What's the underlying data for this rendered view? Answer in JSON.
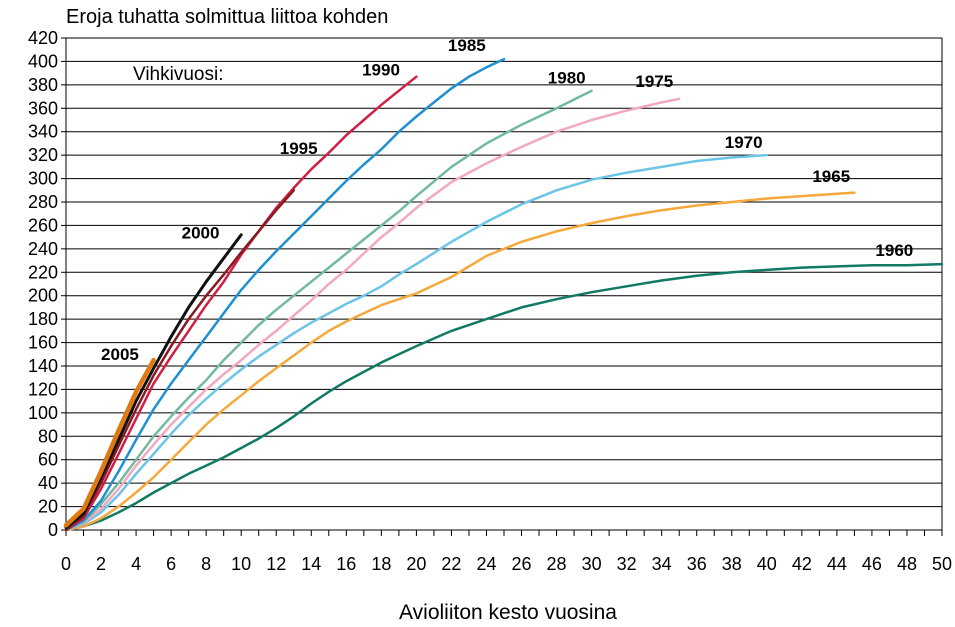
{
  "chart_data": {
    "type": "line",
    "title": "Eroja tuhatta solmittua liittoa kohden",
    "xlabel": "Avioliiton kesto vuosina",
    "ylabel": "",
    "legend_title": "Vihkivuosi:",
    "xlim": [
      0,
      50
    ],
    "ylim": [
      0,
      420
    ],
    "x_ticks": [
      "0",
      "2",
      "4",
      "6",
      "8",
      "10",
      "12",
      "14",
      "16",
      "18",
      "20",
      "22",
      "24",
      "26",
      "28",
      "30",
      "32",
      "34",
      "36",
      "38",
      "40",
      "42",
      "44",
      "46",
      "48",
      "50"
    ],
    "y_ticks": [
      "0",
      "20",
      "40",
      "60",
      "80",
      "100",
      "120",
      "140",
      "160",
      "180",
      "200",
      "220",
      "240",
      "260",
      "280",
      "300",
      "320",
      "340",
      "360",
      "380",
      "400",
      "420"
    ],
    "grid": true,
    "series": [
      {
        "name": "1960",
        "color": "#117A65",
        "x": [
          0,
          1,
          2,
          3,
          4,
          5,
          6,
          7,
          8,
          9,
          10,
          11,
          12,
          13,
          14,
          15,
          16,
          17,
          18,
          19,
          20,
          22,
          24,
          26,
          28,
          30,
          32,
          34,
          36,
          38,
          40,
          42,
          44,
          46,
          48,
          50
        ],
        "y": [
          0,
          3,
          8,
          15,
          23,
          32,
          40,
          48,
          55,
          62,
          70,
          78,
          87,
          97,
          108,
          118,
          127,
          135,
          143,
          150,
          157,
          170,
          180,
          190,
          197,
          203,
          208,
          213,
          217,
          220,
          222,
          224,
          225,
          226,
          226,
          227
        ]
      },
      {
        "name": "1965",
        "color": "#F5A93B",
        "x": [
          0,
          1,
          2,
          3,
          4,
          5,
          6,
          7,
          8,
          9,
          10,
          11,
          12,
          13,
          14,
          15,
          16,
          17,
          18,
          19,
          20,
          22,
          24,
          26,
          28,
          30,
          32,
          34,
          36,
          38,
          40,
          42,
          44,
          45
        ],
        "y": [
          0,
          3,
          10,
          20,
          32,
          45,
          60,
          75,
          90,
          103,
          115,
          127,
          138,
          149,
          160,
          170,
          178,
          185,
          192,
          197,
          202,
          216,
          234,
          246,
          255,
          262,
          268,
          273,
          277,
          280,
          283,
          285,
          287,
          288
        ]
      },
      {
        "name": "1970",
        "color": "#6CC4E6",
        "x": [
          0,
          1,
          2,
          3,
          4,
          5,
          6,
          7,
          8,
          9,
          10,
          11,
          12,
          13,
          14,
          15,
          16,
          17,
          18,
          19,
          20,
          22,
          24,
          26,
          28,
          30,
          32,
          34,
          36,
          38,
          40
        ],
        "y": [
          0,
          5,
          15,
          30,
          48,
          65,
          82,
          98,
          112,
          125,
          137,
          148,
          158,
          168,
          177,
          185,
          193,
          200,
          208,
          218,
          227,
          246,
          263,
          278,
          290,
          299,
          305,
          310,
          315,
          318,
          320
        ]
      },
      {
        "name": "1975",
        "color": "#F2A8C0",
        "x": [
          0,
          1,
          2,
          3,
          4,
          5,
          6,
          7,
          8,
          9,
          10,
          11,
          12,
          13,
          14,
          15,
          16,
          17,
          18,
          19,
          20,
          22,
          24,
          26,
          28,
          30,
          32,
          34,
          35
        ],
        "y": [
          0,
          6,
          18,
          35,
          55,
          73,
          90,
          105,
          120,
          133,
          145,
          158,
          170,
          183,
          196,
          210,
          222,
          236,
          250,
          262,
          275,
          297,
          313,
          327,
          340,
          350,
          358,
          365,
          368
        ]
      },
      {
        "name": "1980",
        "color": "#73B9A2",
        "x": [
          0,
          1,
          2,
          3,
          4,
          5,
          6,
          7,
          8,
          9,
          10,
          11,
          12,
          13,
          14,
          15,
          16,
          17,
          18,
          19,
          20,
          22,
          24,
          26,
          28,
          30
        ],
        "y": [
          0,
          7,
          22,
          40,
          60,
          80,
          97,
          113,
          128,
          145,
          160,
          175,
          188,
          200,
          212,
          224,
          236,
          248,
          260,
          272,
          285,
          310,
          330,
          346,
          360,
          375
        ]
      },
      {
        "name": "1985",
        "color": "#1E90D2",
        "x": [
          0,
          1,
          2,
          3,
          4,
          5,
          6,
          7,
          8,
          9,
          10,
          11,
          12,
          13,
          14,
          15,
          16,
          17,
          18,
          19,
          20,
          21,
          22,
          23,
          24,
          25
        ],
        "y": [
          0,
          8,
          25,
          50,
          77,
          103,
          125,
          145,
          165,
          185,
          205,
          222,
          238,
          253,
          268,
          283,
          298,
          312,
          325,
          340,
          353,
          365,
          377,
          387,
          395,
          402
        ]
      },
      {
        "name": "1990",
        "color": "#D11F44",
        "x": [
          0,
          1,
          2,
          3,
          4,
          5,
          6,
          7,
          8,
          9,
          10,
          11,
          12,
          13,
          14,
          15,
          16,
          17,
          18,
          19,
          20
        ],
        "y": [
          0,
          10,
          35,
          65,
          95,
          125,
          148,
          170,
          192,
          212,
          235,
          255,
          275,
          292,
          308,
          322,
          337,
          350,
          363,
          375,
          387
        ]
      },
      {
        "name": "1995",
        "color": "#8B1A20",
        "x": [
          0,
          1,
          2,
          3,
          4,
          5,
          6,
          7,
          8,
          9,
          10,
          11,
          12,
          13
        ],
        "y": [
          0,
          12,
          40,
          72,
          103,
          132,
          157,
          180,
          200,
          218,
          237,
          255,
          273,
          290
        ]
      },
      {
        "name": "2000",
        "color": "#111111",
        "x": [
          0,
          1,
          2,
          3,
          4,
          5,
          6,
          7,
          8,
          9,
          10
        ],
        "y": [
          2,
          14,
          45,
          77,
          110,
          138,
          165,
          190,
          212,
          232,
          252
        ]
      },
      {
        "name": "2005",
        "color": "#E07A10",
        "x": [
          0,
          1,
          2,
          3,
          4,
          5
        ],
        "y": [
          4,
          18,
          50,
          85,
          118,
          145
        ]
      }
    ]
  }
}
